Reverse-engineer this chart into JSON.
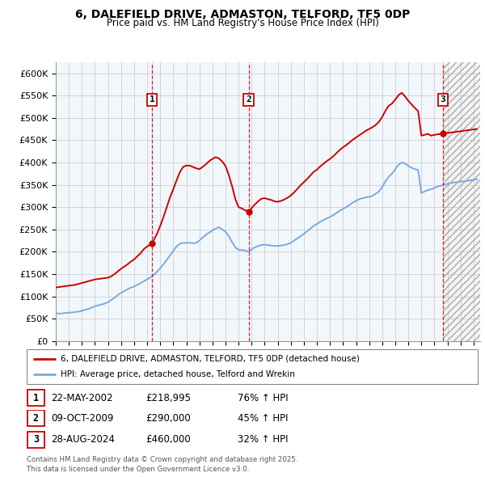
{
  "title": "6, DALEFIELD DRIVE, ADMASTON, TELFORD, TF5 0DP",
  "subtitle": "Price paid vs. HM Land Registry's House Price Index (HPI)",
  "ylim": [
    0,
    625000
  ],
  "yticks": [
    0,
    50000,
    100000,
    150000,
    200000,
    250000,
    300000,
    350000,
    400000,
    450000,
    500000,
    550000,
    600000
  ],
  "ytick_labels": [
    "£0",
    "£50K",
    "£100K",
    "£150K",
    "£200K",
    "£250K",
    "£300K",
    "£350K",
    "£400K",
    "£450K",
    "£500K",
    "£550K",
    "£600K"
  ],
  "xlim_start": 1995.0,
  "xlim_end": 2027.5,
  "sale_dates": [
    2002.388,
    2009.771,
    2024.66
  ],
  "sale_labels": [
    "1",
    "2",
    "3"
  ],
  "sale_prices": [
    218995,
    290000,
    460000
  ],
  "sale_price_labels": [
    "£218,995",
    "£290,000",
    "£460,000"
  ],
  "sale_date_labels": [
    "22-MAY-2002",
    "09-OCT-2009",
    "28-AUG-2024"
  ],
  "sale_pct_hpi": [
    "76% ↑ HPI",
    "45% ↑ HPI",
    "32% ↑ HPI"
  ],
  "red_line_color": "#cc0000",
  "blue_line_color": "#7aabdc",
  "grid_color": "#cccccc",
  "legend_line1": "6, DALEFIELD DRIVE, ADMASTON, TELFORD, TF5 0DP (detached house)",
  "legend_line2": "HPI: Average price, detached house, Telford and Wrekin",
  "footer_text": "Contains HM Land Registry data © Crown copyright and database right 2025.\nThis data is licensed under the Open Government Licence v3.0.",
  "years": [
    1995.0,
    1995.25,
    1995.5,
    1995.75,
    1996.0,
    1996.25,
    1996.5,
    1996.75,
    1997.0,
    1997.25,
    1997.5,
    1997.75,
    1998.0,
    1998.25,
    1998.5,
    1998.75,
    1999.0,
    1999.25,
    1999.5,
    1999.75,
    2000.0,
    2000.25,
    2000.5,
    2000.75,
    2001.0,
    2001.25,
    2001.5,
    2001.75,
    2002.0,
    2002.25,
    2002.388,
    2002.5,
    2002.75,
    2003.0,
    2003.25,
    2003.5,
    2003.75,
    2004.0,
    2004.25,
    2004.5,
    2004.75,
    2005.0,
    2005.25,
    2005.5,
    2005.75,
    2006.0,
    2006.25,
    2006.5,
    2006.75,
    2007.0,
    2007.25,
    2007.5,
    2007.75,
    2008.0,
    2008.25,
    2008.5,
    2008.75,
    2009.0,
    2009.25,
    2009.5,
    2009.771,
    2010.0,
    2010.25,
    2010.5,
    2010.75,
    2011.0,
    2011.25,
    2011.5,
    2011.75,
    2012.0,
    2012.25,
    2012.5,
    2012.75,
    2013.0,
    2013.25,
    2013.5,
    2013.75,
    2014.0,
    2014.25,
    2014.5,
    2014.75,
    2015.0,
    2015.25,
    2015.5,
    2015.75,
    2016.0,
    2016.25,
    2016.5,
    2016.75,
    2017.0,
    2017.25,
    2017.5,
    2017.75,
    2018.0,
    2018.25,
    2018.5,
    2018.75,
    2019.0,
    2019.25,
    2019.5,
    2019.75,
    2020.0,
    2020.25,
    2020.5,
    2020.75,
    2021.0,
    2021.25,
    2021.5,
    2021.75,
    2022.0,
    2022.25,
    2022.5,
    2022.75,
    2023.0,
    2023.25,
    2023.5,
    2023.75,
    2024.0,
    2024.25,
    2024.5,
    2024.66,
    2025.0,
    2025.25,
    2025.5,
    2025.75,
    2026.0,
    2026.25,
    2026.5,
    2026.75,
    2027.0,
    2027.25
  ],
  "hpi_values": [
    62000,
    61500,
    62000,
    63000,
    63500,
    64000,
    65000,
    66000,
    68000,
    70000,
    72000,
    75000,
    78000,
    80000,
    82000,
    84000,
    87000,
    92000,
    97000,
    103000,
    108000,
    112000,
    116000,
    120000,
    122000,
    126000,
    130000,
    134000,
    138000,
    143000,
    145000,
    148000,
    155000,
    163000,
    172000,
    182000,
    192000,
    202000,
    212000,
    218000,
    220000,
    220000,
    220000,
    219000,
    220000,
    225000,
    232000,
    238000,
    243000,
    248000,
    252000,
    255000,
    250000,
    245000,
    235000,
    222000,
    210000,
    204000,
    204000,
    203000,
    200000,
    205000,
    210000,
    213000,
    215000,
    216000,
    215000,
    214000,
    213000,
    213000,
    214000,
    215000,
    217000,
    220000,
    225000,
    230000,
    235000,
    240000,
    246000,
    252000,
    258000,
    262000,
    267000,
    271000,
    275000,
    278000,
    282000,
    287000,
    292000,
    296000,
    300000,
    305000,
    310000,
    314000,
    318000,
    320000,
    322000,
    323000,
    325000,
    330000,
    335000,
    345000,
    358000,
    368000,
    375000,
    385000,
    395000,
    400000,
    398000,
    392000,
    388000,
    385000,
    383000,
    332000,
    335000,
    338000,
    340000,
    343000,
    346000,
    348000,
    350000,
    352000,
    354000,
    355000,
    356000,
    357000,
    358000,
    359000,
    360000,
    361000,
    362000
  ],
  "prop_values": [
    120000,
    121000,
    122000,
    123000,
    124000,
    125000,
    126000,
    128000,
    130000,
    132000,
    134000,
    136000,
    138000,
    139000,
    140000,
    141000,
    142000,
    145000,
    150000,
    156000,
    162000,
    167000,
    172000,
    178000,
    183000,
    190000,
    197000,
    206000,
    212000,
    216000,
    218995,
    226000,
    240000,
    258000,
    278000,
    300000,
    322000,
    340000,
    360000,
    378000,
    390000,
    393000,
    393000,
    390000,
    387000,
    385000,
    390000,
    396000,
    403000,
    408000,
    412000,
    409000,
    402000,
    392000,
    372000,
    347000,
    318000,
    300000,
    297000,
    293000,
    290000,
    298000,
    306000,
    313000,
    319000,
    320000,
    318000,
    316000,
    313000,
    312000,
    314000,
    317000,
    321000,
    326000,
    333000,
    341000,
    349000,
    356000,
    363000,
    371000,
    379000,
    384000,
    391000,
    397000,
    403000,
    408000,
    414000,
    421000,
    428000,
    434000,
    439000,
    445000,
    451000,
    456000,
    461000,
    466000,
    471000,
    475000,
    479000,
    484000,
    491000,
    502000,
    516000,
    527000,
    532000,
    541000,
    551000,
    556000,
    548000,
    538000,
    530000,
    522000,
    515000,
    460000,
    462000,
    464000,
    460000,
    462000,
    463000,
    464000,
    465000,
    466000,
    467000,
    468000,
    469000,
    470000,
    471000,
    472000,
    473000,
    474000,
    475000
  ]
}
